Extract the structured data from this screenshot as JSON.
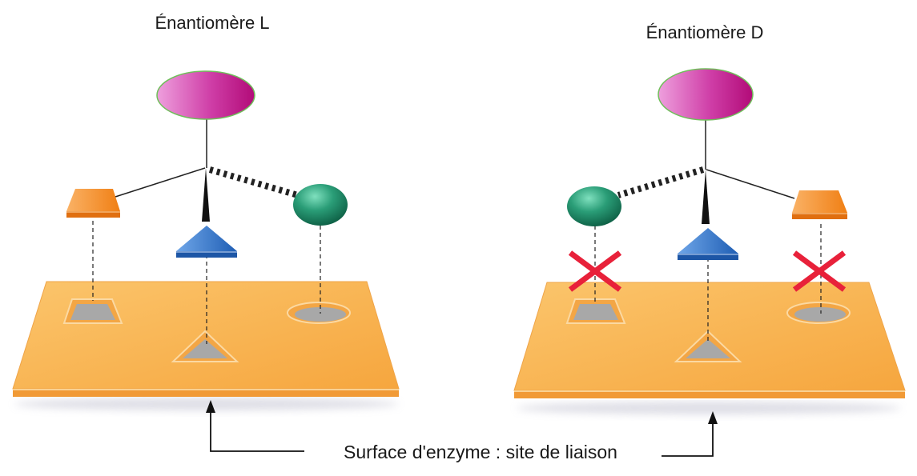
{
  "diagram": {
    "left_panel": {
      "title": "Énantiomère L"
    },
    "right_panel": {
      "title": "Énantiomère D"
    },
    "caption": "Surface d'enzyme : site de liaison"
  },
  "colors": {
    "plate": "#f8b34a",
    "plate_edge": "#e98f2a",
    "hole": "#a7a7a7",
    "ellipse_group": "#c11381",
    "sphere_group": "#1d8a66",
    "trapezoid_group": "#f58a1e",
    "triangle_group": "#2c6fc9",
    "mismatch_cross": "#e8213a"
  },
  "icons": {
    "mismatch": "red-x-cross-icon",
    "arrow": "up-arrow-icon"
  }
}
